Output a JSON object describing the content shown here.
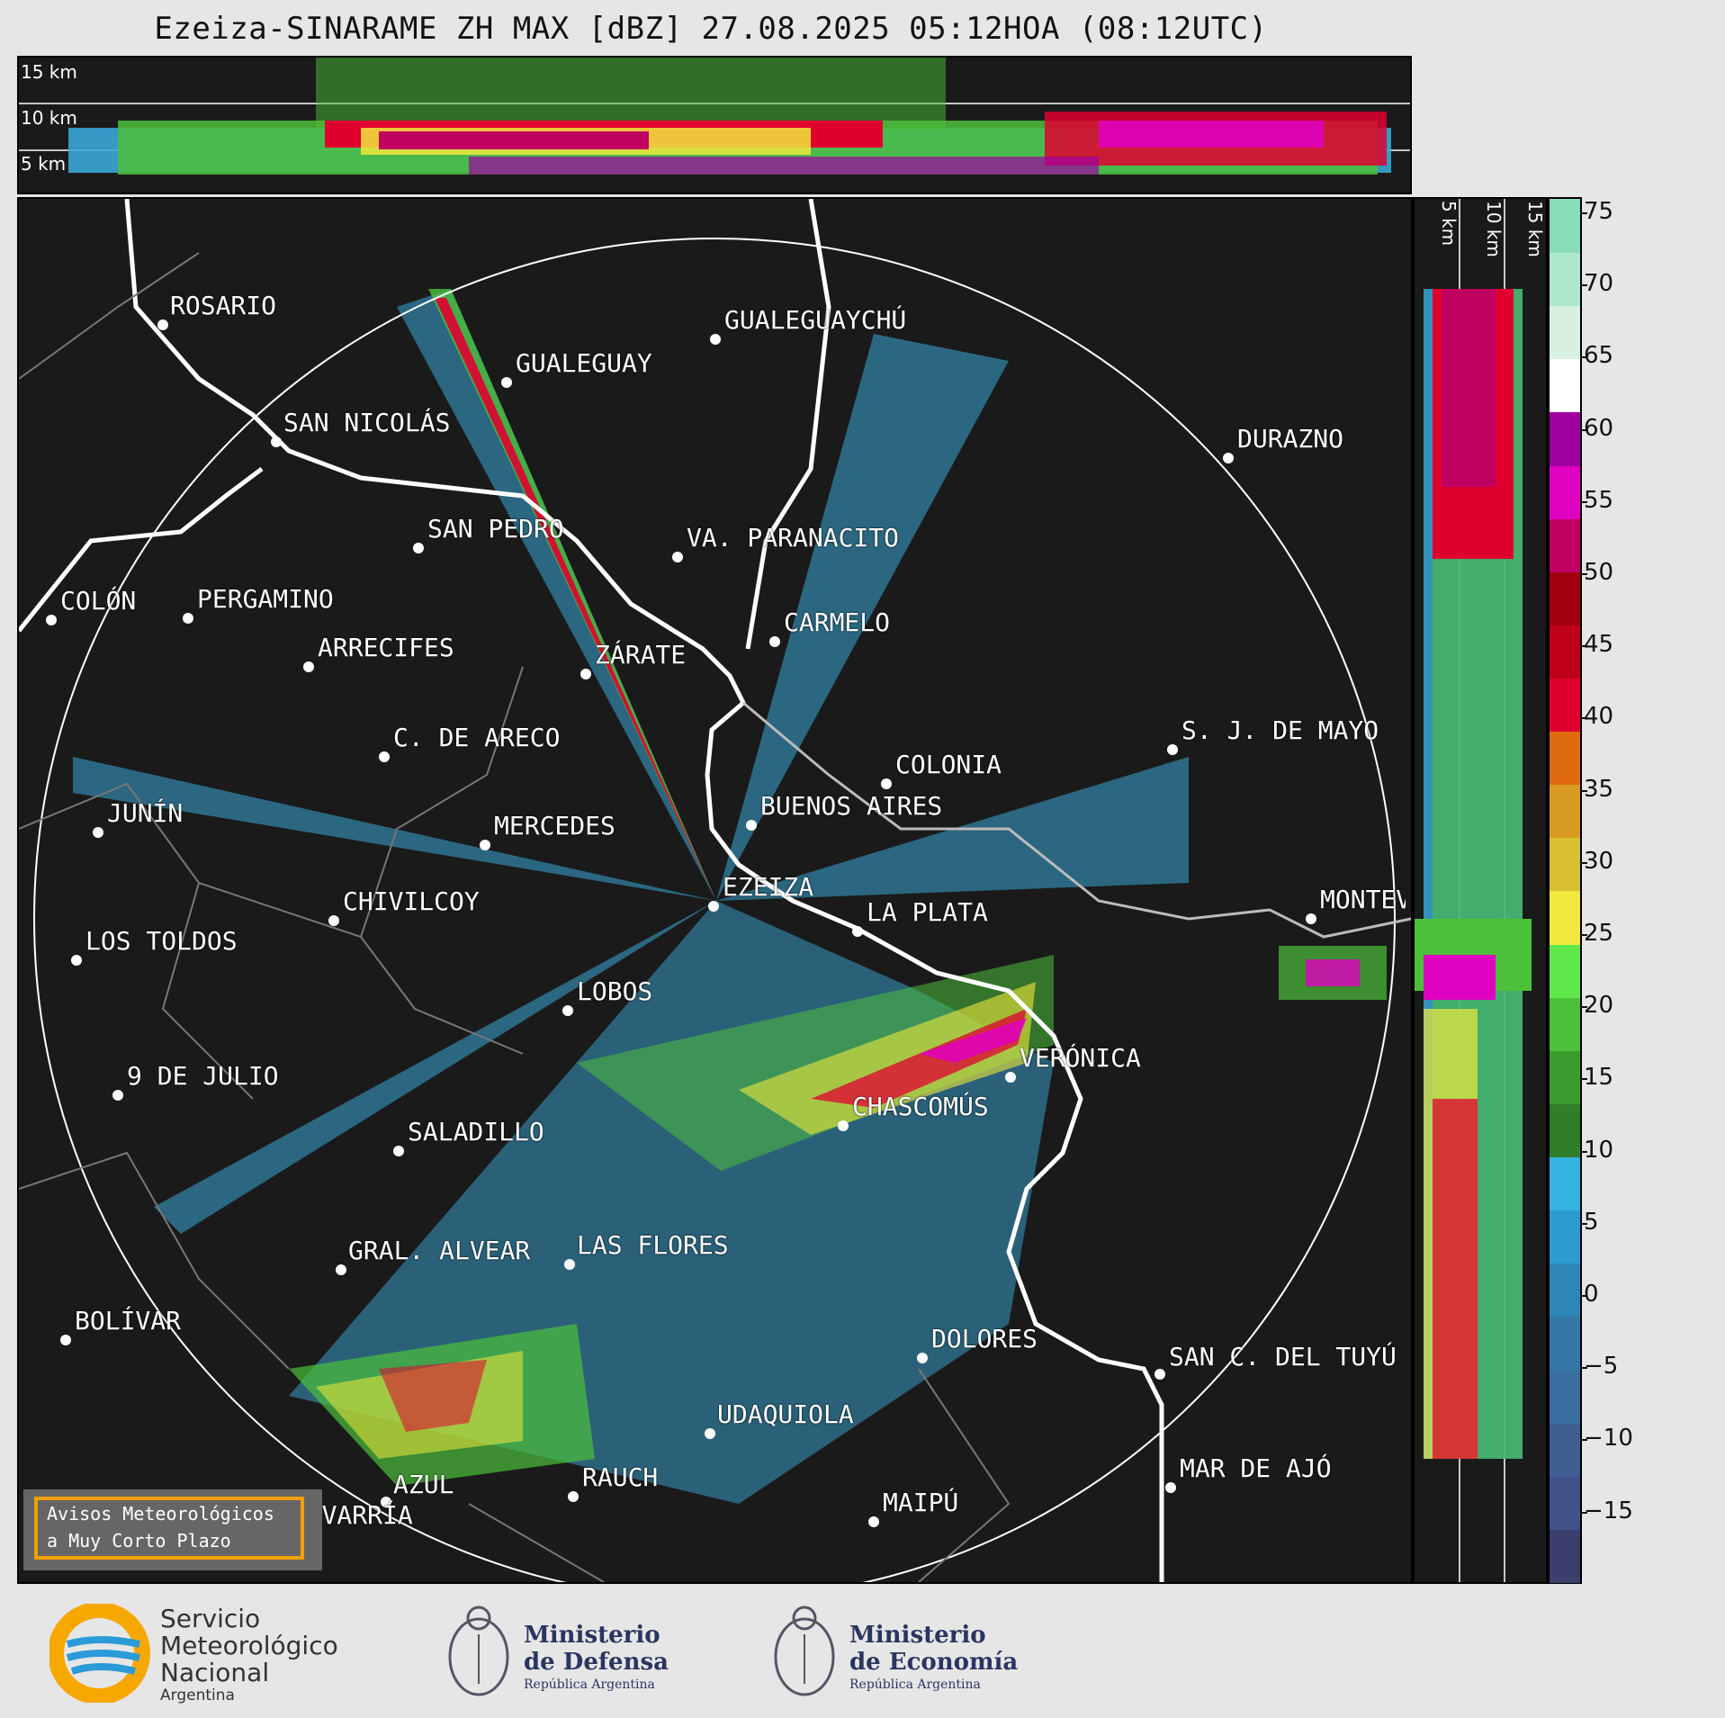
{
  "title": "Ezeiza-SINARAME ZH MAX [dBZ] 27.08.2025 05:12HOA (08:12UTC)",
  "cross_top_labels": [
    "15 km",
    "10 km",
    "5 km"
  ],
  "cross_right_labels": [
    "5 km",
    "10 km",
    "15 km"
  ],
  "colorbar": {
    "unit": "dBZ",
    "ticks": [
      "75",
      "70",
      "65",
      "60",
      "55",
      "50",
      "45",
      "40",
      "35",
      "30",
      "25",
      "20",
      "15",
      "10",
      "5",
      "0",
      "−5",
      "−10",
      "−15"
    ],
    "colors": [
      "#3a3f6e",
      "#41528a",
      "#3f5f93",
      "#3b6ea0",
      "#3578a8",
      "#2e86b8",
      "#2b9bd0",
      "#33b4e0",
      "#2f7f2a",
      "#3a9c2e",
      "#4cc03a",
      "#5ee84a",
      "#f0e83c",
      "#d8c030",
      "#d89a20",
      "#e06a10",
      "#e00030",
      "#c00018",
      "#a00010",
      "#c00060",
      "#e000c0",
      "#a000a0",
      "#ffffff",
      "#d8f0e0",
      "#aee8cc",
      "#88dcb8"
    ]
  },
  "cities": [
    {
      "name": "ROSARIO"
    },
    {
      "name": "GUALEGUAYCHÚ"
    },
    {
      "name": "GUALEGUAY"
    },
    {
      "name": "SAN NICOLÁS"
    },
    {
      "name": "DURAZNO"
    },
    {
      "name": "SAN PEDRO"
    },
    {
      "name": "VA. PARANACITO"
    },
    {
      "name": "COLÓN"
    },
    {
      "name": "PERGAMINO"
    },
    {
      "name": "CARMELO"
    },
    {
      "name": "ARRECIFES"
    },
    {
      "name": "ZÁRATE"
    },
    {
      "name": "S. J. DE MAYO"
    },
    {
      "name": "C. DE ARECO"
    },
    {
      "name": "COLONIA"
    },
    {
      "name": "JUNÍN"
    },
    {
      "name": "BUENOS AIRES"
    },
    {
      "name": "MERCEDES"
    },
    {
      "name": "EZEIZA"
    },
    {
      "name": "MONTEVIDEO"
    },
    {
      "name": "CHIVILCOY"
    },
    {
      "name": "LA PLATA"
    },
    {
      "name": "LOS TOLDOS"
    },
    {
      "name": "LOBOS"
    },
    {
      "name": "VERÓNICA"
    },
    {
      "name": "9 DE JULIO"
    },
    {
      "name": "CHASCOMÚS"
    },
    {
      "name": "SALADILLO"
    },
    {
      "name": "GRAL. ALVEAR"
    },
    {
      "name": "LAS FLORES"
    },
    {
      "name": "BOLÍVAR"
    },
    {
      "name": "DOLORES"
    },
    {
      "name": "SAN C. DEL TUYÚ"
    },
    {
      "name": "UDAQUIOLA"
    },
    {
      "name": "MAR DE AJÓ"
    },
    {
      "name": "RAUCH"
    },
    {
      "name": "AZUL"
    },
    {
      "name": "OLAVARRÍA"
    },
    {
      "name": "MAIPÚ"
    }
  ],
  "warning_box": {
    "line1": "Avisos Meteorológicos",
    "line2": "a Muy Corto Plazo"
  },
  "logos": {
    "smn": {
      "line1": "Servicio",
      "line2": "Meteorológico",
      "line3": "Nacional",
      "line4": "Argentina"
    },
    "defensa": {
      "line1": "Ministerio",
      "line2": "de Defensa",
      "line3": "República Argentina"
    },
    "economia": {
      "line1": "Ministerio",
      "line2": "de Economía",
      "line3": "República Argentina"
    }
  }
}
